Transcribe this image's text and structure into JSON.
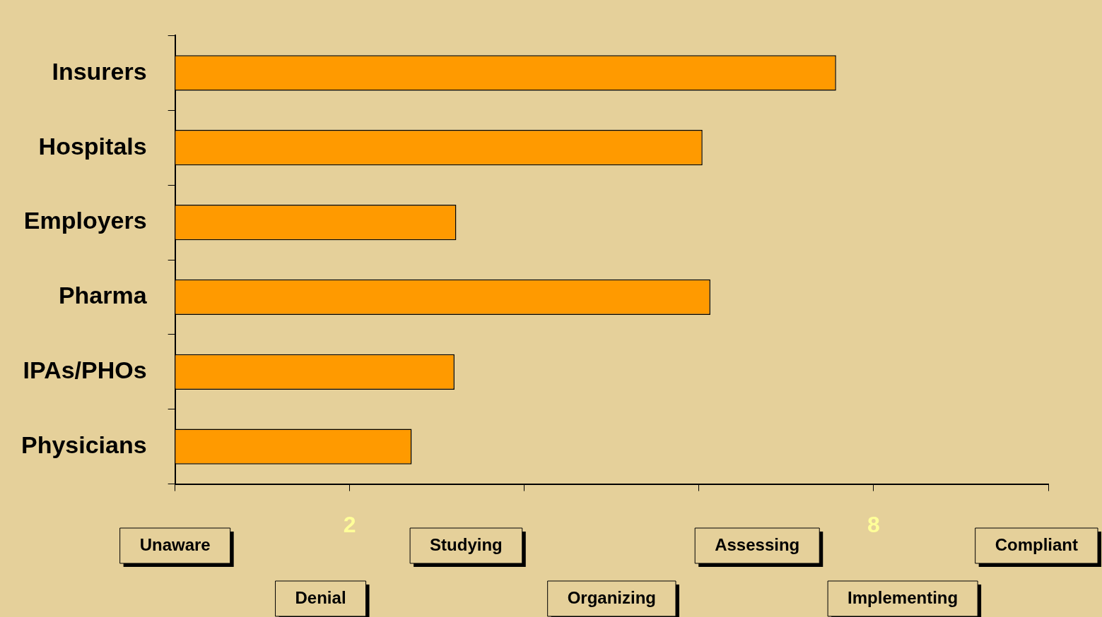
{
  "chart_data": {
    "type": "bar",
    "orientation": "horizontal",
    "categories": [
      "Insurers",
      "Hospitals",
      "Employers",
      "Pharma",
      "IPAs/PHOs",
      "Physicians"
    ],
    "values": [
      7.57,
      6.04,
      3.22,
      6.13,
      3.2,
      2.71
    ],
    "color": "#ff9a00",
    "xlim": [
      0,
      10
    ],
    "xticks": [
      {
        "value": 0,
        "label": null
      },
      2,
      {
        "value": 4,
        "label": null
      },
      {
        "value": 6,
        "label": null
      },
      8,
      {
        "value": 10,
        "label": null
      }
    ],
    "grid": false,
    "legend": false,
    "annotations": [
      "Unaware",
      "Denial",
      "Studying",
      "Organizing",
      "Assessing",
      "Implementing",
      "Compliant"
    ]
  }
}
